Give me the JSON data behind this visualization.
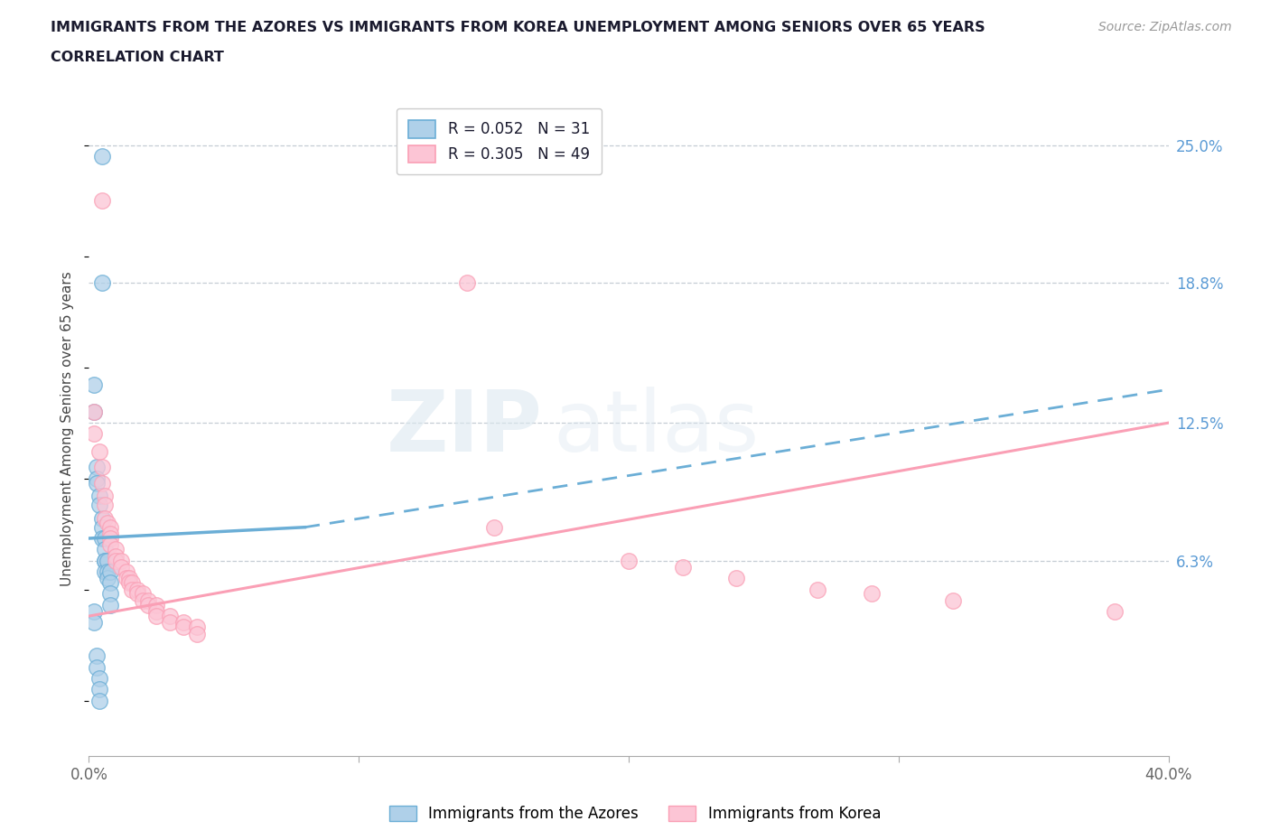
{
  "title_line1": "IMMIGRANTS FROM THE AZORES VS IMMIGRANTS FROM KOREA UNEMPLOYMENT AMONG SENIORS OVER 65 YEARS",
  "title_line2": "CORRELATION CHART",
  "source": "Source: ZipAtlas.com",
  "ylabel": "Unemployment Among Seniors over 65 years",
  "xmin": 0.0,
  "xmax": 0.4,
  "ymin": -0.025,
  "ymax": 0.27,
  "yticks": [
    0.0,
    0.063,
    0.125,
    0.188,
    0.25
  ],
  "ytick_labels": [
    "",
    "6.3%",
    "12.5%",
    "18.8%",
    "25.0%"
  ],
  "xticks": [
    0.0,
    0.1,
    0.2,
    0.3,
    0.4
  ],
  "xtick_labels": [
    "0.0%",
    "",
    "",
    "",
    "40.0%"
  ],
  "watermark_zip": "ZIP",
  "watermark_atlas": "atlas",
  "legend_entries": [
    {
      "label_r": "R = 0.052",
      "label_n": "N = 31",
      "marker_face": "#afd0e9",
      "marker_edge": "#6baed6"
    },
    {
      "label_r": "R = 0.305",
      "label_n": "N = 49",
      "marker_face": "#fcc5d5",
      "marker_edge": "#fa9fb5"
    }
  ],
  "azores_scatter": [
    [
      0.005,
      0.245
    ],
    [
      0.005,
      0.188
    ],
    [
      0.002,
      0.142
    ],
    [
      0.002,
      0.13
    ],
    [
      0.003,
      0.105
    ],
    [
      0.003,
      0.1
    ],
    [
      0.003,
      0.098
    ],
    [
      0.004,
      0.092
    ],
    [
      0.004,
      0.088
    ],
    [
      0.005,
      0.082
    ],
    [
      0.005,
      0.078
    ],
    [
      0.005,
      0.073
    ],
    [
      0.006,
      0.073
    ],
    [
      0.006,
      0.068
    ],
    [
      0.006,
      0.063
    ],
    [
      0.006,
      0.063
    ],
    [
      0.006,
      0.058
    ],
    [
      0.007,
      0.063
    ],
    [
      0.007,
      0.058
    ],
    [
      0.007,
      0.055
    ],
    [
      0.008,
      0.058
    ],
    [
      0.008,
      0.053
    ],
    [
      0.008,
      0.048
    ],
    [
      0.008,
      0.043
    ],
    [
      0.002,
      0.04
    ],
    [
      0.002,
      0.035
    ],
    [
      0.003,
      0.02
    ],
    [
      0.003,
      0.015
    ],
    [
      0.004,
      0.01
    ],
    [
      0.004,
      0.005
    ],
    [
      0.004,
      0.0
    ]
  ],
  "korea_scatter": [
    [
      0.005,
      0.225
    ],
    [
      0.14,
      0.188
    ],
    [
      0.002,
      0.13
    ],
    [
      0.002,
      0.12
    ],
    [
      0.004,
      0.112
    ],
    [
      0.005,
      0.105
    ],
    [
      0.005,
      0.098
    ],
    [
      0.006,
      0.092
    ],
    [
      0.006,
      0.088
    ],
    [
      0.006,
      0.082
    ],
    [
      0.007,
      0.08
    ],
    [
      0.008,
      0.078
    ],
    [
      0.008,
      0.075
    ],
    [
      0.008,
      0.073
    ],
    [
      0.008,
      0.07
    ],
    [
      0.01,
      0.068
    ],
    [
      0.01,
      0.065
    ],
    [
      0.01,
      0.063
    ],
    [
      0.012,
      0.063
    ],
    [
      0.012,
      0.06
    ],
    [
      0.014,
      0.058
    ],
    [
      0.014,
      0.055
    ],
    [
      0.015,
      0.055
    ],
    [
      0.015,
      0.053
    ],
    [
      0.016,
      0.053
    ],
    [
      0.016,
      0.05
    ],
    [
      0.018,
      0.05
    ],
    [
      0.018,
      0.048
    ],
    [
      0.02,
      0.048
    ],
    [
      0.02,
      0.045
    ],
    [
      0.022,
      0.045
    ],
    [
      0.022,
      0.043
    ],
    [
      0.025,
      0.043
    ],
    [
      0.025,
      0.04
    ],
    [
      0.025,
      0.038
    ],
    [
      0.03,
      0.038
    ],
    [
      0.03,
      0.035
    ],
    [
      0.035,
      0.035
    ],
    [
      0.035,
      0.033
    ],
    [
      0.04,
      0.033
    ],
    [
      0.04,
      0.03
    ],
    [
      0.15,
      0.078
    ],
    [
      0.2,
      0.063
    ],
    [
      0.22,
      0.06
    ],
    [
      0.24,
      0.055
    ],
    [
      0.27,
      0.05
    ],
    [
      0.29,
      0.048
    ],
    [
      0.32,
      0.045
    ],
    [
      0.38,
      0.04
    ]
  ],
  "azores_line": {
    "x0": 0.0,
    "y0": 0.073,
    "x1": 0.08,
    "y1": 0.078
  },
  "korea_line": {
    "x0": 0.0,
    "y0": 0.038,
    "x1": 0.4,
    "y1": 0.125
  },
  "azores_dash_line": {
    "x0": 0.08,
    "y0": 0.078,
    "x1": 0.4,
    "y1": 0.14
  },
  "azores_line_color": "#6baed6",
  "korea_line_color": "#fa9fb5",
  "scatter_azores_color": "#afd0e9",
  "scatter_korea_color": "#fcc5d5",
  "grid_color": "#c5cdd4",
  "background_color": "#ffffff"
}
